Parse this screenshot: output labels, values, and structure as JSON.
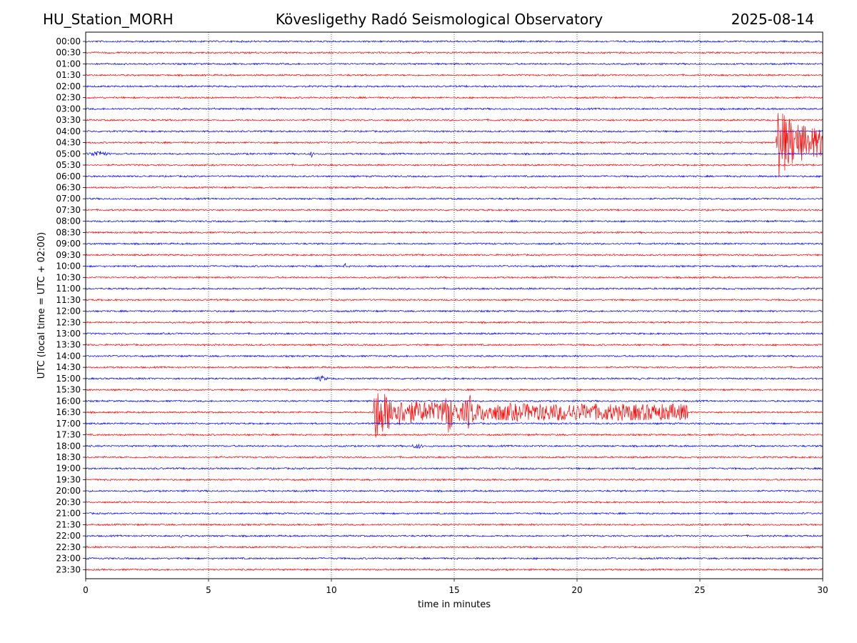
{
  "header": {
    "station": "HU_Station_MORH",
    "title": "Kövesligethy Radó Seismological Observatory",
    "date": "2025-08-14"
  },
  "colors": {
    "even_rows": "#0000ff",
    "odd_rows": "#ff0000",
    "grid": "#000000"
  },
  "chart_data": {
    "type": "line",
    "title": "Kövesligethy Radó Seismological Observatory",
    "xlabel": "time in minutes",
    "ylabel": "UTC (local time = UTC + 02:00)",
    "xlim": [
      0,
      30
    ],
    "x_ticks": [
      0,
      5,
      10,
      15,
      20,
      25,
      30
    ],
    "grid": "vertical dotted lines at every 5 minutes",
    "rows": [
      "00:00",
      "00:30",
      "01:00",
      "01:30",
      "02:00",
      "02:30",
      "03:00",
      "03:30",
      "04:00",
      "04:30",
      "05:00",
      "05:30",
      "06:00",
      "06:30",
      "07:00",
      "07:30",
      "08:00",
      "08:30",
      "09:00",
      "09:30",
      "10:00",
      "10:30",
      "11:00",
      "11:30",
      "12:00",
      "12:30",
      "13:00",
      "13:30",
      "14:00",
      "14:30",
      "15:00",
      "15:30",
      "16:00",
      "16:30",
      "17:00",
      "17:30",
      "18:00",
      "18:30",
      "19:00",
      "19:30",
      "20:00",
      "20:30",
      "21:00",
      "21:30",
      "22:00",
      "22:30",
      "23:00",
      "23:30"
    ],
    "events": [
      {
        "row": "04:30",
        "start_min": 28.1,
        "end_min": 30,
        "peak_amplitude": 5.5,
        "kind": "quake"
      },
      {
        "row": "05:00",
        "start_min": 0,
        "end_min": 1.0,
        "peak_amplitude": 0.4,
        "kind": "burst"
      },
      {
        "row": "05:00",
        "start_min": 9.1,
        "end_min": 9.3,
        "peak_amplitude": 0.4,
        "kind": "burst"
      },
      {
        "row": "10:00",
        "start_min": 10.5,
        "end_min": 10.6,
        "peak_amplitude": 0.5,
        "kind": "burst"
      },
      {
        "row": "15:00",
        "start_min": 9.3,
        "end_min": 9.9,
        "peak_amplitude": 0.3,
        "kind": "burst"
      },
      {
        "row": "15:00",
        "start_min": 22.5,
        "end_min": 22.6,
        "peak_amplitude": 0.3,
        "kind": "burst"
      },
      {
        "row": "16:30",
        "start_min": 11.7,
        "end_min": 24.5,
        "peak_amplitude": 4.0,
        "kind": "quake"
      },
      {
        "row": "16:30",
        "start_min": 14.5,
        "end_min": 15.0,
        "peak_amplitude": 1.8,
        "kind": "burst"
      },
      {
        "row": "16:30",
        "start_min": 15.4,
        "end_min": 15.8,
        "peak_amplitude": 1.5,
        "kind": "burst"
      },
      {
        "row": "18:00",
        "start_min": 13.2,
        "end_min": 13.8,
        "peak_amplitude": 0.3,
        "kind": "burst"
      },
      {
        "row": "22:00",
        "start_min": 3.8,
        "end_min": 4.0,
        "peak_amplitude": 0.2,
        "kind": "burst"
      }
    ]
  }
}
